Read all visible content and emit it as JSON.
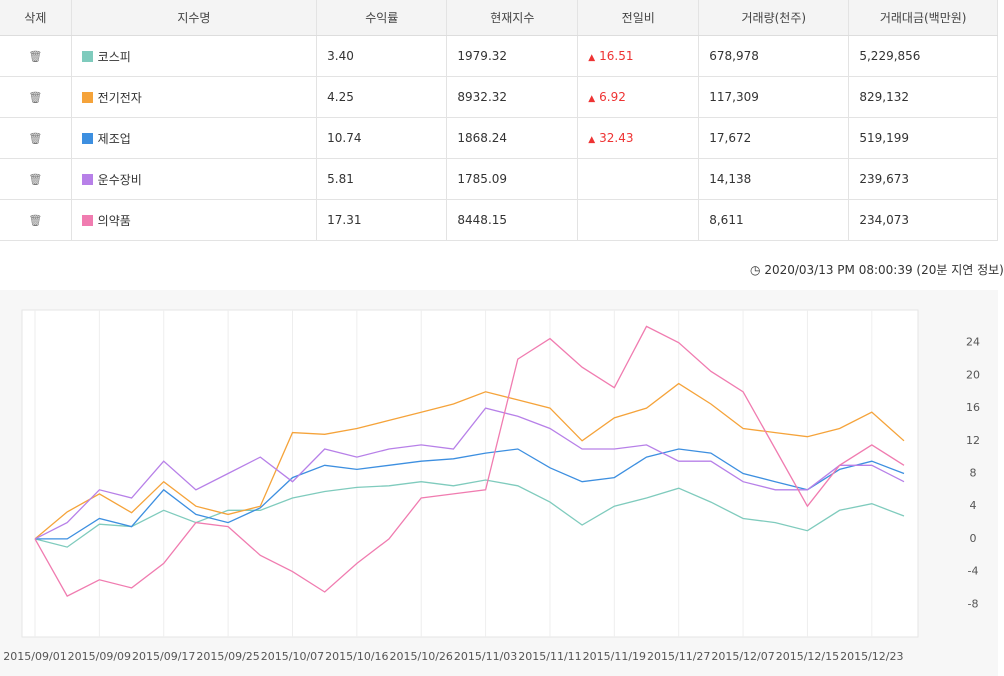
{
  "table": {
    "headers": [
      "삭제",
      "지수명",
      "수익률",
      "현재지수",
      "전일비",
      "거래량(천주)",
      "거래대금(백만원)"
    ],
    "rows": [
      {
        "name": "코스피",
        "return": "3.40",
        "current": "1979.32",
        "change": "16.51",
        "volume": "678,978",
        "amount": "5,229,856"
      },
      {
        "name": "전기전자",
        "return": "4.25",
        "current": "8932.32",
        "change": "6.92",
        "volume": "117,309",
        "amount": "829,132"
      },
      {
        "name": "제조업",
        "return": "10.74",
        "current": "1868.24",
        "change": "32.43",
        "volume": "17,672",
        "amount": "519,199"
      },
      {
        "name": "운수장비",
        "return": "5.81",
        "current": "1785.09",
        "volume": "14,138",
        "amount": "239,673"
      },
      {
        "name": "의약품",
        "return": "17.31",
        "current": "8448.15",
        "volume": "8,611",
        "amount": "234,073"
      }
    ]
  },
  "timestamp": "2020/03/13 PM 08:00:39 (20분 지연 정보)",
  "chart_data": {
    "type": "line",
    "categories": [
      "2015/09/01",
      null,
      "2015/09/09",
      null,
      "2015/09/17",
      null,
      "2015/09/25",
      null,
      "2015/10/07",
      null,
      "2015/10/16",
      null,
      "2015/10/26",
      null,
      "2015/11/03",
      null,
      "2015/11/11",
      null,
      "2015/11/19",
      null,
      "2015/11/27",
      null,
      "2015/12/07",
      null,
      "2015/12/15",
      null,
      "2015/12/23",
      null
    ],
    "series": [
      {
        "color": "#7fcbbd",
        "values": [
          0,
          -1,
          1.8,
          1.5,
          3.5,
          2,
          3.5,
          3.5,
          5,
          5.8,
          6.3,
          6.5,
          7,
          6.5,
          7.2,
          6.5,
          4.5,
          1.7,
          4,
          5,
          6.2,
          4.5,
          2.5,
          2,
          1,
          3.5,
          4.3,
          2.8
        ]
      },
      {
        "color": "#f5a33a",
        "values": [
          0,
          3.3,
          5.5,
          3.2,
          7,
          4,
          3,
          4,
          13,
          12.8,
          13.5,
          14.5,
          15.5,
          16.5,
          18,
          17,
          16,
          12,
          14.8,
          16,
          19,
          16.5,
          13.5,
          13,
          12.5,
          13.5,
          15.5,
          12
        ]
      },
      {
        "color": "#3d8fe0",
        "values": [
          0,
          0,
          2.5,
          1.5,
          6,
          3,
          2,
          3.8,
          7.5,
          9,
          8.5,
          9,
          9.5,
          9.8,
          10.5,
          11,
          8.7,
          7,
          7.5,
          10,
          11,
          10.5,
          8,
          7,
          6,
          8.5,
          9.5,
          8
        ]
      },
      {
        "color": "#b780e8",
        "values": [
          0,
          2,
          6,
          5,
          9.5,
          6,
          8,
          10,
          7,
          11,
          10,
          11,
          11.5,
          11,
          16,
          15,
          13.5,
          11,
          11,
          11.5,
          9.5,
          9.5,
          7,
          6,
          6,
          9,
          9,
          7
        ]
      },
      {
        "color": "#f07cb0",
        "values": [
          0,
          -7,
          -5,
          -6,
          -3,
          2,
          1.5,
          -2,
          -4,
          -6.5,
          -3,
          0,
          5,
          5.5,
          6,
          22,
          24.5,
          21,
          18.5,
          26,
          24,
          20.5,
          18,
          11,
          4,
          9,
          11.5,
          9
        ]
      }
    ],
    "ylim": [
      -12,
      28
    ],
    "yticks": [
      -8,
      -4,
      0,
      4,
      8,
      12,
      16,
      20,
      24
    ],
    "xgrid": true
  }
}
